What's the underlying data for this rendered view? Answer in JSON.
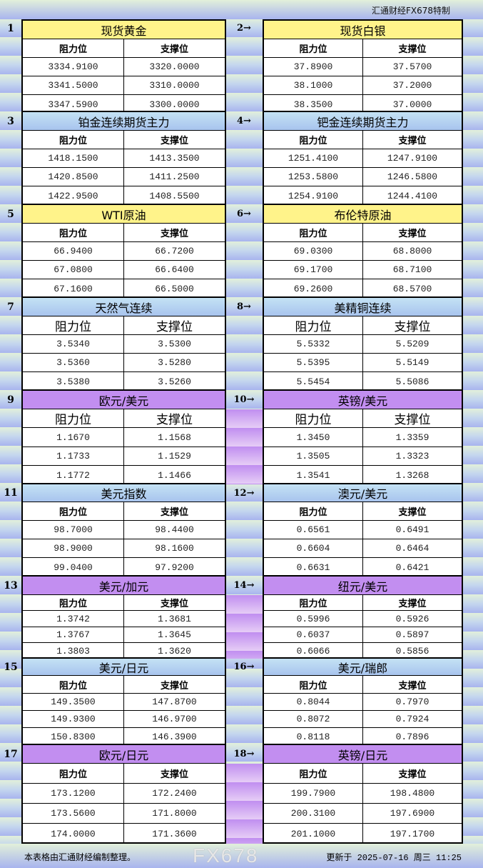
{
  "header": {
    "brand": "汇通财经FX678特制"
  },
  "column_labels": {
    "resistance": "阻力位",
    "support": "支撑位"
  },
  "colors": {
    "yellow": "#fff38a",
    "blue": "#a8c4ee",
    "purple": "#c28ef0"
  },
  "instruments": [
    {
      "no": "1",
      "title": "现货黄金",
      "color": "yellow",
      "resistance": [
        "3334.9100",
        "3341.5000",
        "3347.5900"
      ],
      "support": [
        "3320.0000",
        "3310.0000",
        "3300.0000"
      ]
    },
    {
      "no": "2→",
      "title": "现货白银",
      "color": "yellow",
      "resistance": [
        "37.8900",
        "38.1000",
        "38.3500"
      ],
      "support": [
        "37.5700",
        "37.2000",
        "37.0000"
      ]
    },
    {
      "no": "3",
      "title": "铂金连续期货主力",
      "color": "blue",
      "resistance": [
        "1418.1500",
        "1420.8500",
        "1422.9500"
      ],
      "support": [
        "1413.3500",
        "1411.2500",
        "1408.5500"
      ]
    },
    {
      "no": "4→",
      "title": "钯金连续期货主力",
      "color": "blue",
      "resistance": [
        "1251.4100",
        "1253.5800",
        "1254.9100"
      ],
      "support": [
        "1247.9100",
        "1246.5800",
        "1244.4100"
      ]
    },
    {
      "no": "5",
      "title": "WTI原油",
      "color": "yellow",
      "resistance": [
        "66.9400",
        "67.0800",
        "67.1600"
      ],
      "support": [
        "66.7200",
        "66.6400",
        "66.5000"
      ]
    },
    {
      "no": "6→",
      "title": "布伦特原油",
      "color": "yellow",
      "resistance": [
        "69.0300",
        "69.1700",
        "69.2600"
      ],
      "support": [
        "68.8000",
        "68.7100",
        "68.5700"
      ]
    },
    {
      "no": "7",
      "title": "天然气连续",
      "color": "blue",
      "resistance": [
        "3.5340",
        "3.5360",
        "3.5380"
      ],
      "support": [
        "3.5300",
        "3.5280",
        "3.5260"
      ]
    },
    {
      "no": "8→",
      "title": "美精铜连续",
      "color": "blue",
      "resistance": [
        "5.5332",
        "5.5395",
        "5.5454"
      ],
      "support": [
        "5.5209",
        "5.5149",
        "5.5086"
      ]
    },
    {
      "no": "9",
      "title": "欧元/美元",
      "color": "purple",
      "resistance": [
        "1.1670",
        "1.1733",
        "1.1772"
      ],
      "support": [
        "1.1568",
        "1.1529",
        "1.1466"
      ]
    },
    {
      "no": "10→",
      "title": "英镑/美元",
      "color": "purple",
      "resistance": [
        "1.3450",
        "1.3505",
        "1.3541"
      ],
      "support": [
        "1.3359",
        "1.3323",
        "1.3268"
      ]
    },
    {
      "no": "11",
      "title": "美元指数",
      "color": "blue",
      "resistance": [
        "98.7000",
        "98.9000",
        "99.0400"
      ],
      "support": [
        "98.4400",
        "98.1600",
        "97.9200"
      ]
    },
    {
      "no": "12→",
      "title": "澳元/美元",
      "color": "blue",
      "resistance": [
        "0.6561",
        "0.6604",
        "0.6631"
      ],
      "support": [
        "0.6491",
        "0.6464",
        "0.6421"
      ]
    },
    {
      "no": "13",
      "title": "美元/加元",
      "color": "purple",
      "resistance": [
        "1.3742",
        "1.3767",
        "1.3803"
      ],
      "support": [
        "1.3681",
        "1.3645",
        "1.3620"
      ]
    },
    {
      "no": "14→",
      "title": "纽元/美元",
      "color": "purple",
      "resistance": [
        "0.5996",
        "0.6037",
        "0.6066"
      ],
      "support": [
        "0.5926",
        "0.5897",
        "0.5856"
      ]
    },
    {
      "no": "15",
      "title": "美元/日元",
      "color": "blue",
      "resistance": [
        "149.3500",
        "149.9300",
        "150.8300"
      ],
      "support": [
        "147.8700",
        "146.9700",
        "146.3900"
      ]
    },
    {
      "no": "16→",
      "title": "美元/瑞郎",
      "color": "blue",
      "resistance": [
        "0.8044",
        "0.8072",
        "0.8118"
      ],
      "support": [
        "0.7970",
        "0.7924",
        "0.7896"
      ]
    },
    {
      "no": "17",
      "title": "欧元/日元",
      "color": "purple",
      "resistance": [
        "173.1200",
        "173.5600",
        "174.0000"
      ],
      "support": [
        "172.2400",
        "171.8000",
        "171.3600"
      ]
    },
    {
      "no": "18→",
      "title": "英镑/日元",
      "color": "purple",
      "resistance": [
        "199.7900",
        "200.3100",
        "201.1000"
      ],
      "support": [
        "198.4800",
        "197.6900",
        "197.1700"
      ]
    }
  ],
  "footer": {
    "note": "本表格由汇通财经编制整理。",
    "updated": "更新于 2025-07-16 周三 11:25",
    "watermark": "FX678"
  }
}
